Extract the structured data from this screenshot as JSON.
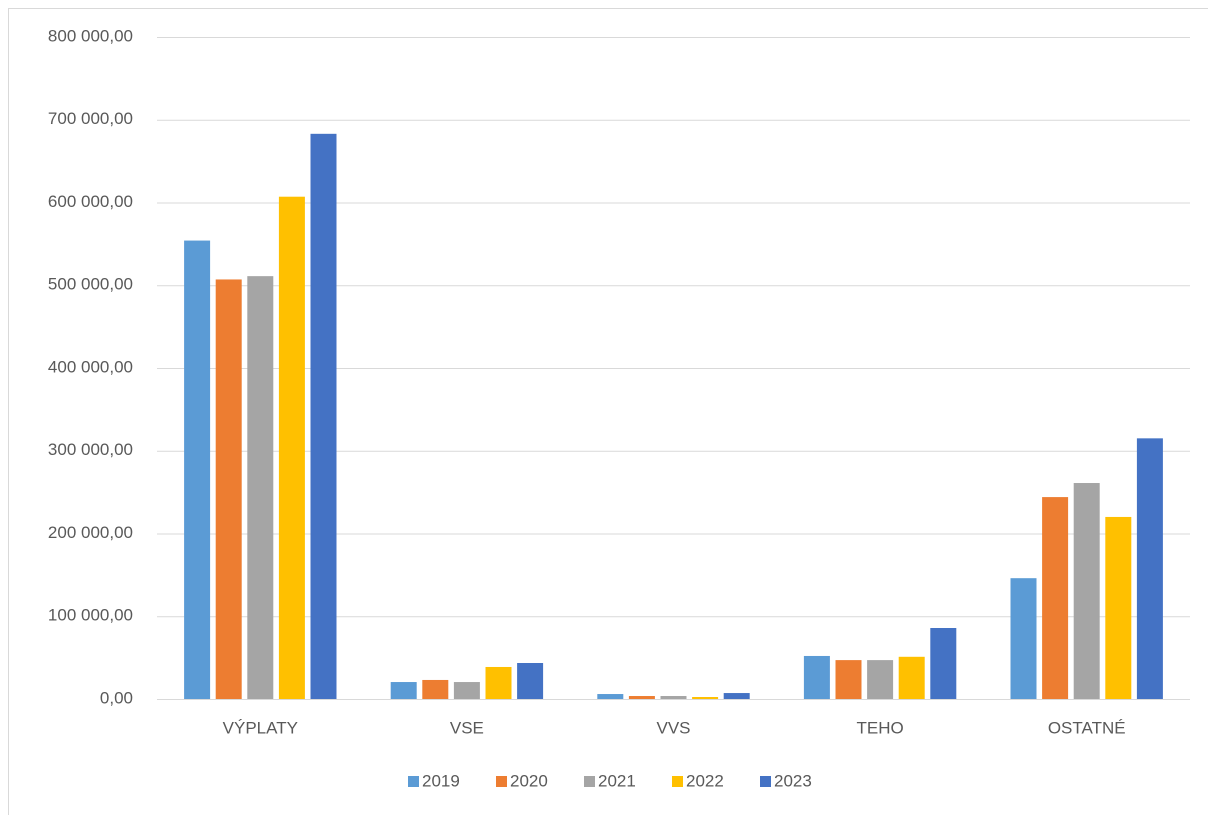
{
  "chart_data": {
    "type": "bar",
    "categories": [
      "VÝPLATY",
      "VSE",
      "VVS",
      "TEHO",
      "OSTATNÉ"
    ],
    "series": [
      {
        "name": "2019",
        "color": "#5b9bd5",
        "values": [
          554000,
          20500,
          6000,
          52000,
          146000
        ]
      },
      {
        "name": "2020",
        "color": "#ed7d31",
        "values": [
          507000,
          23000,
          3600,
          47000,
          244000
        ]
      },
      {
        "name": "2021",
        "color": "#a5a5a5",
        "values": [
          511000,
          20500,
          3600,
          47000,
          261000
        ]
      },
      {
        "name": "2022",
        "color": "#ffc000",
        "values": [
          607000,
          38700,
          2400,
          51000,
          220000
        ]
      },
      {
        "name": "2023",
        "color": "#4472c4",
        "values": [
          683000,
          43500,
          7200,
          85800,
          315000
        ]
      }
    ],
    "ylim": [
      0,
      800000
    ],
    "yticks": [
      {
        "value": 0,
        "label": "0,00"
      },
      {
        "value": 100000,
        "label": "100 000,00"
      },
      {
        "value": 200000,
        "label": "200 000,00"
      },
      {
        "value": 300000,
        "label": "300 000,00"
      },
      {
        "value": 400000,
        "label": "400 000,00"
      },
      {
        "value": 500000,
        "label": "500 000,00"
      },
      {
        "value": 600000,
        "label": "600 000,00"
      },
      {
        "value": 700000,
        "label": "700 000,00"
      },
      {
        "value": 800000,
        "label": "800 000,00"
      }
    ],
    "grid": true,
    "legend": "bottom"
  }
}
